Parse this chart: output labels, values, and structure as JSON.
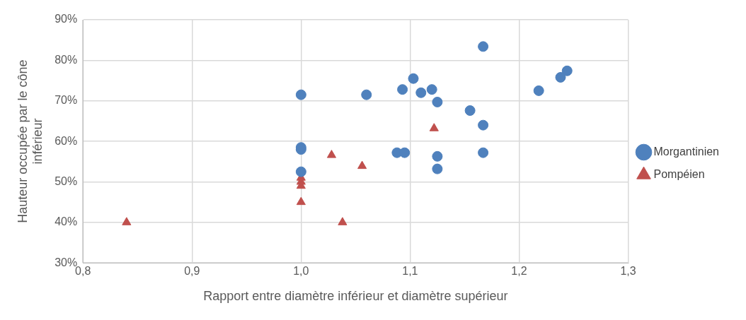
{
  "chart_data": {
    "type": "scatter",
    "xlabel": "Rapport entre diamètre inférieur et diamètre supérieur",
    "ylabel": "Hauteur occupée par le cône inférieur",
    "xlim": [
      0.8,
      1.3
    ],
    "xticks": [
      {
        "value": 0.8,
        "label": "0,8"
      },
      {
        "value": 0.9,
        "label": "0,9"
      },
      {
        "value": 1.0,
        "label": "1,0"
      },
      {
        "value": 1.1,
        "label": "1,1"
      },
      {
        "value": 1.2,
        "label": "1,2"
      },
      {
        "value": 1.3,
        "label": "1,3"
      }
    ],
    "ylim": [
      30,
      90
    ],
    "yticks": [
      {
        "value": 30,
        "label": "30%"
      },
      {
        "value": 40,
        "label": "40%"
      },
      {
        "value": 50,
        "label": "50%"
      },
      {
        "value": 60,
        "label": "60%"
      },
      {
        "value": 70,
        "label": "70%"
      },
      {
        "value": 80,
        "label": "80%"
      },
      {
        "value": 90,
        "label": "90%"
      }
    ],
    "grid": true,
    "legend": "right",
    "series": [
      {
        "name": "Morgantinien",
        "color": "#4f81bd",
        "marker": "circle",
        "x": [
          1.0,
          1.0,
          1.0,
          1.0,
          1.06,
          1.093,
          1.103,
          1.11,
          1.12,
          1.125,
          1.088,
          1.095,
          1.125,
          1.125,
          1.155,
          1.167,
          1.167,
          1.167,
          1.218,
          1.238,
          1.244
        ],
        "values": [
          71.5,
          58.5,
          58,
          52.5,
          71.5,
          72.8,
          75.5,
          72,
          72.8,
          69.7,
          57.2,
          57.2,
          56.3,
          53.2,
          67.6,
          64,
          57.2,
          83.4,
          72.5,
          75.8,
          77.4
        ]
      },
      {
        "name": "Pompéien",
        "color": "#c0504d",
        "marker": "triangle",
        "x": [
          0.84,
          1.0,
          1.0,
          1.0,
          1.0,
          1.028,
          1.038,
          1.056,
          1.122
        ],
        "values": [
          40,
          51,
          50,
          49,
          45,
          56.6,
          40,
          53.9,
          63.2
        ]
      }
    ]
  }
}
